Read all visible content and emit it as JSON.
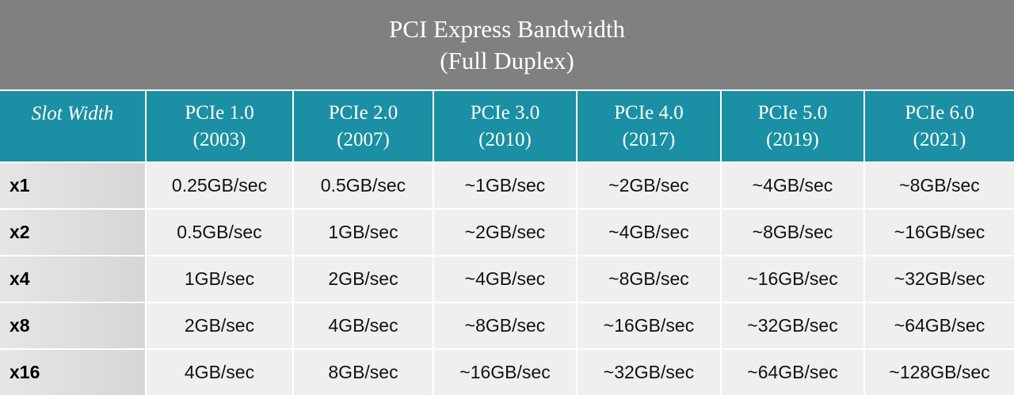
{
  "header": {
    "title": [
      "PCI Express Bandwidth",
      "(Full Duplex)"
    ]
  },
  "table": {
    "corner": "Slot Width",
    "columns": [
      {
        "version": "PCIe 1.0",
        "year": "(2003)"
      },
      {
        "version": "PCIe 2.0",
        "year": "(2007)"
      },
      {
        "version": "PCIe 3.0",
        "year": "(2010)"
      },
      {
        "version": "PCIe 4.0",
        "year": "(2017)"
      },
      {
        "version": "PCIe 5.0",
        "year": "(2019)"
      },
      {
        "version": "PCIe 6.0",
        "year": "(2021)"
      }
    ],
    "rows": [
      [
        "x1",
        "0.25GB/sec",
        "0.5GB/sec",
        "~1GB/sec",
        "~2GB/sec",
        "~4GB/sec",
        "~8GB/sec"
      ],
      [
        "x2",
        "0.5GB/sec",
        "1GB/sec",
        "~2GB/sec",
        "~4GB/sec",
        "~8GB/sec",
        "~16GB/sec"
      ],
      [
        "x4",
        "1GB/sec",
        "2GB/sec",
        "~4GB/sec",
        "~8GB/sec",
        "~16GB/sec",
        "~32GB/sec"
      ],
      [
        "x8",
        "2GB/sec",
        "4GB/sec",
        "~8GB/sec",
        "~16GB/sec",
        "~32GB/sec",
        "~64GB/sec"
      ],
      [
        "x16",
        "4GB/sec",
        "8GB/sec",
        "~16GB/sec",
        "~32GB/sec",
        "~64GB/sec",
        "~128GB/sec"
      ]
    ]
  }
}
